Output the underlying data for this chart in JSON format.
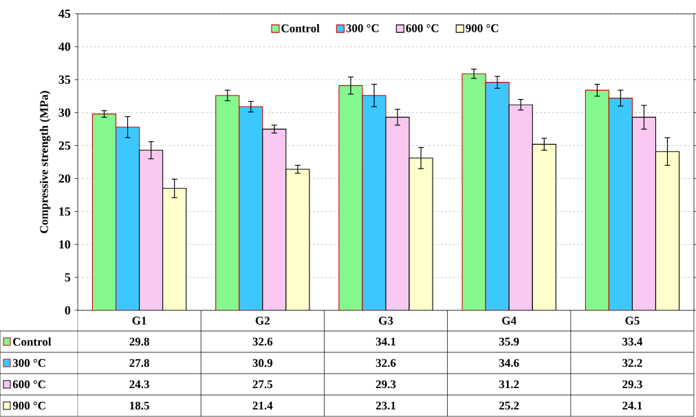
{
  "chart_data": {
    "type": "bar",
    "ylabel": "Compressive strength (MPa)",
    "categories": [
      "G1",
      "G2",
      "G3",
      "G4",
      "G5"
    ],
    "series": [
      {
        "name": "Control",
        "color": "#85f78f",
        "values": [
          29.8,
          32.6,
          34.1,
          35.9,
          33.4
        ],
        "errors": [
          0.5,
          0.8,
          1.3,
          0.7,
          0.9
        ]
      },
      {
        "name": "300 °C",
        "color": "#3cc8ff",
        "values": [
          27.8,
          30.9,
          32.6,
          34.6,
          32.2
        ],
        "errors": [
          1.6,
          0.8,
          1.7,
          0.9,
          1.2
        ]
      },
      {
        "name": "600 °C",
        "color": "#f8c8f0",
        "values": [
          24.3,
          27.5,
          29.3,
          31.2,
          29.3
        ],
        "errors": [
          1.3,
          0.6,
          1.2,
          0.8,
          1.8
        ]
      },
      {
        "name": "900 °C",
        "color": "#ffffcc",
        "values": [
          18.5,
          21.4,
          23.1,
          25.2,
          24.1
        ],
        "errors": [
          1.4,
          0.6,
          1.6,
          0.9,
          2.1
        ]
      }
    ],
    "ylim": [
      0,
      45
    ],
    "yticks": [
      0,
      5,
      10,
      15,
      20,
      25,
      30,
      35,
      40,
      45
    ],
    "grid": "y",
    "legend": "top",
    "data_labels": true
  }
}
